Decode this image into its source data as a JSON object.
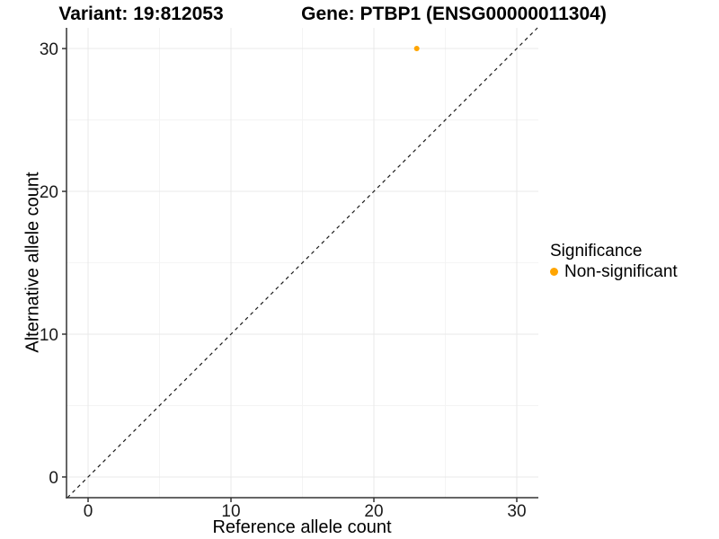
{
  "chart_data": {
    "type": "scatter",
    "title_left": "Variant: 19:812053",
    "title_right": "Gene: PTBP1 (ENSG00000011304)",
    "xlabel": "Reference allele count",
    "ylabel": "Alternative allele count",
    "xlim": [
      -1.51,
      31.51
    ],
    "ylim": [
      -1.45,
      31.45
    ],
    "x_ticks": [
      0,
      10,
      20,
      30
    ],
    "y_ticks": [
      0,
      10,
      20,
      30
    ],
    "x_minor_ticks": [
      5,
      15,
      25
    ],
    "y_minor_ticks": [
      5,
      15,
      25
    ],
    "grid": true,
    "identity_line": {
      "style": "dashed",
      "color": "#1a1a1a"
    },
    "series": [
      {
        "name": "Non-significant",
        "color": "#FFA500",
        "points": [
          {
            "x": 23,
            "y": 30
          }
        ]
      }
    ],
    "legend": {
      "title": "Significance",
      "position": "right",
      "items": [
        {
          "label": "Non-significant",
          "color": "#FFA500"
        }
      ]
    },
    "colors": {
      "axis_line": "#333333",
      "major_grid": "#e8e8e8",
      "minor_grid": "#f4f4f4",
      "tick_label": "#1a1a1a"
    }
  }
}
